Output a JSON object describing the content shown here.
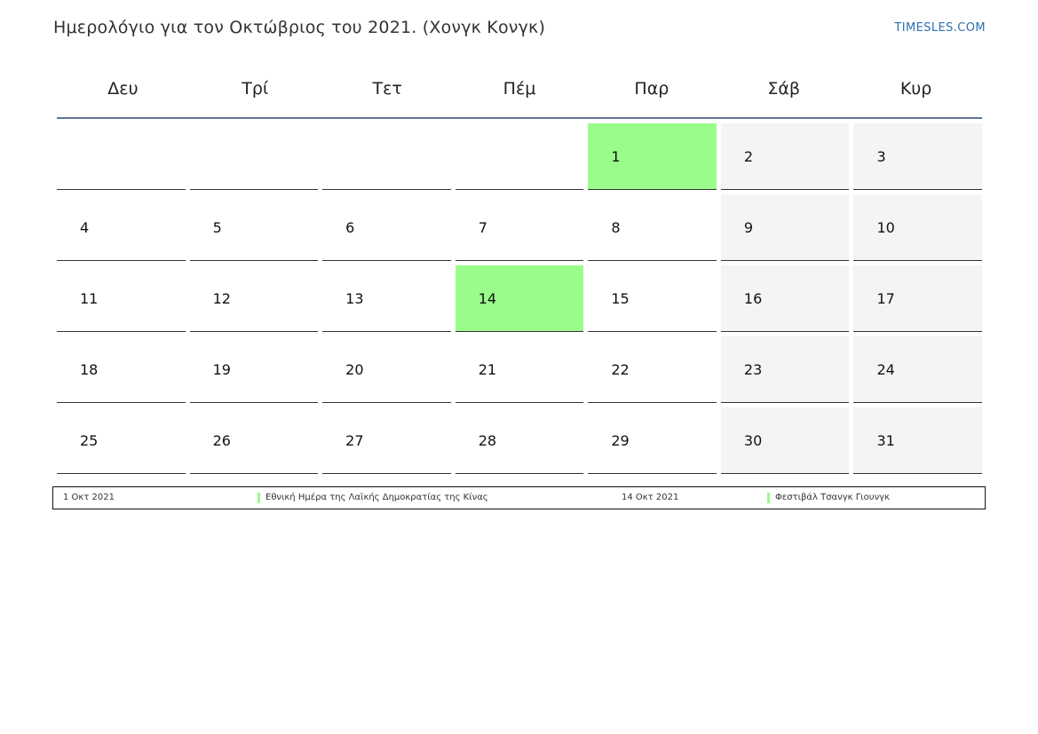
{
  "header": {
    "title": "Ημερολόγιο για τον Οκτώβριος του 2021. (Χονγκ Κονγκ)",
    "brand": "TIMESLES.COM"
  },
  "colors": {
    "holiday": "#9afc8a",
    "weekend": "#f4f4f4",
    "header_rule": "#5f7594",
    "brand": "#2f6fb0"
  },
  "weekdays": [
    "Δευ",
    "Τρί",
    "Τετ",
    "Πέμ",
    "Παρ",
    "Σάβ",
    "Κυρ"
  ],
  "weeks": [
    [
      {
        "d": "",
        "weekend": false,
        "holiday": false
      },
      {
        "d": "",
        "weekend": false,
        "holiday": false
      },
      {
        "d": "",
        "weekend": false,
        "holiday": false
      },
      {
        "d": "",
        "weekend": false,
        "holiday": false
      },
      {
        "d": "1",
        "weekend": false,
        "holiday": true
      },
      {
        "d": "2",
        "weekend": true,
        "holiday": false
      },
      {
        "d": "3",
        "weekend": true,
        "holiday": false
      }
    ],
    [
      {
        "d": "4",
        "weekend": false,
        "holiday": false
      },
      {
        "d": "5",
        "weekend": false,
        "holiday": false
      },
      {
        "d": "6",
        "weekend": false,
        "holiday": false
      },
      {
        "d": "7",
        "weekend": false,
        "holiday": false
      },
      {
        "d": "8",
        "weekend": false,
        "holiday": false
      },
      {
        "d": "9",
        "weekend": true,
        "holiday": false
      },
      {
        "d": "10",
        "weekend": true,
        "holiday": false
      }
    ],
    [
      {
        "d": "11",
        "weekend": false,
        "holiday": false
      },
      {
        "d": "12",
        "weekend": false,
        "holiday": false
      },
      {
        "d": "13",
        "weekend": false,
        "holiday": false
      },
      {
        "d": "14",
        "weekend": false,
        "holiday": true
      },
      {
        "d": "15",
        "weekend": false,
        "holiday": false
      },
      {
        "d": "16",
        "weekend": true,
        "holiday": false
      },
      {
        "d": "17",
        "weekend": true,
        "holiday": false
      }
    ],
    [
      {
        "d": "18",
        "weekend": false,
        "holiday": false
      },
      {
        "d": "19",
        "weekend": false,
        "holiday": false
      },
      {
        "d": "20",
        "weekend": false,
        "holiday": false
      },
      {
        "d": "21",
        "weekend": false,
        "holiday": false
      },
      {
        "d": "22",
        "weekend": false,
        "holiday": false
      },
      {
        "d": "23",
        "weekend": true,
        "holiday": false
      },
      {
        "d": "24",
        "weekend": true,
        "holiday": false
      }
    ],
    [
      {
        "d": "25",
        "weekend": false,
        "holiday": false
      },
      {
        "d": "26",
        "weekend": false,
        "holiday": false
      },
      {
        "d": "27",
        "weekend": false,
        "holiday": false
      },
      {
        "d": "28",
        "weekend": false,
        "holiday": false
      },
      {
        "d": "29",
        "weekend": false,
        "holiday": false
      },
      {
        "d": "30",
        "weekend": true,
        "holiday": false
      },
      {
        "d": "31",
        "weekend": true,
        "holiday": false
      }
    ]
  ],
  "legend": [
    {
      "date": "1 Οκτ 2021",
      "name": "Εθνική Ημέρα της Λαϊκής Δημοκρατίας της Κίνας"
    },
    {
      "date": "14 Οκτ 2021",
      "name": "Φεστιβάλ Τσανγκ Γιουνγκ"
    }
  ]
}
